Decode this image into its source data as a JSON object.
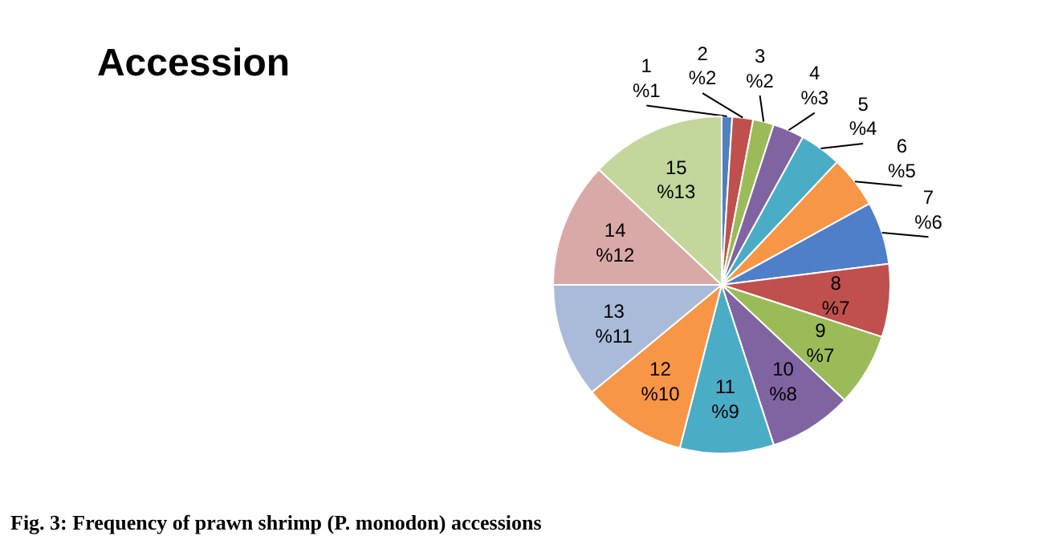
{
  "chart_data": {
    "type": "pie",
    "title": "Accession",
    "categories": [
      "1",
      "2",
      "3",
      "4",
      "5",
      "6",
      "7",
      "8",
      "9",
      "10",
      "11",
      "12",
      "13",
      "14",
      "15"
    ],
    "values": [
      1,
      2,
      2,
      3,
      4,
      5,
      6,
      7,
      7,
      8,
      9,
      10,
      11,
      12,
      13
    ],
    "value_labels": [
      "%1",
      "%2",
      "%2",
      "%3",
      "%4",
      "%5",
      "%6",
      "%7",
      "%7",
      "%8",
      "%9",
      "%10",
      "%11",
      "%12",
      "%13"
    ],
    "colors": [
      "#4f81bd",
      "#c0504d",
      "#9bbb59",
      "#8064a2",
      "#4bacc6",
      "#f79646",
      "#4f7fc9",
      "#c0504d",
      "#9bbb59",
      "#8064a2",
      "#4bacc6",
      "#f79646",
      "#a9bbd9",
      "#d9a9a8",
      "#c3d69b"
    ],
    "annotations": [
      "Fig. 3: Frequency of prawn shrimp (P. monodon) accessions"
    ]
  }
}
